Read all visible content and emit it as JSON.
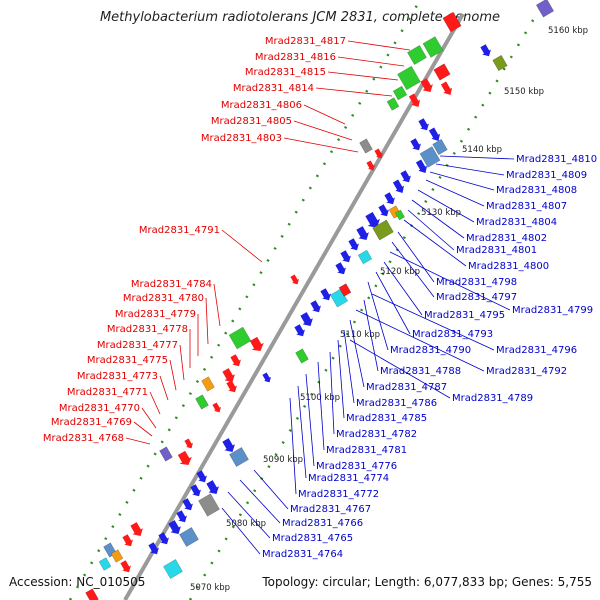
{
  "title": "Methylobacterium radiotolerans JCM 2831, complete genome",
  "footer": {
    "accession": "Accession: NC_010505",
    "info": "Topology: circular; Length: 6,077,833 bp; Genes: 5,755"
  },
  "colors": {
    "reverse_strand": "#e00000",
    "forward_strand": "#0000cc",
    "backbone": "#9a9a9a",
    "tick": "#2e8b22",
    "cds_red": "#ff1a1a",
    "cds_blue": "#1f1fe6",
    "cds_green": "#2ecc2e",
    "cds_steel": "#5b8fc7",
    "cds_olive": "#7a9a1e",
    "cds_cyan": "#27d8e8",
    "cds_gray": "#8c8c8c",
    "cds_orange": "#f39c12",
    "cds_purple": "#7060c8"
  },
  "scale": {
    "unit": "kbp",
    "ticks": [
      "5070 kbp",
      "5080 kbp",
      "5090 kbp",
      "5100 kbp",
      "5110 kbp",
      "5120 kbp",
      "5130 kbp",
      "5140 kbp",
      "5150 kbp",
      "5160 kbp"
    ]
  },
  "left_labels": [
    "Mrad2831_4817",
    "Mrad2831_4816",
    "Mrad2831_4815",
    "Mrad2831_4814",
    "Mrad2831_4806",
    "Mrad2831_4805",
    "Mrad2831_4803",
    "Mrad2831_4791",
    "Mrad2831_4784",
    "Mrad2831_4780",
    "Mrad2831_4779",
    "Mrad2831_4778",
    "Mrad2831_4777",
    "Mrad2831_4775",
    "Mrad2831_4773",
    "Mrad2831_4771",
    "Mrad2831_4770",
    "Mrad2831_4769",
    "Mrad2831_4768"
  ],
  "right_labels": [
    "Mrad2831_4810",
    "Mrad2831_4809",
    "Mrad2831_4808",
    "Mrad2831_4807",
    "Mrad2831_4804",
    "Mrad2831_4802",
    "Mrad2831_4801",
    "Mrad2831_4800",
    "Mrad2831_4798",
    "Mrad2831_4797",
    "Mrad2831_4799",
    "Mrad2831_4795",
    "Mrad2831_4793",
    "Mrad2831_4790",
    "Mrad2831_4796",
    "Mrad2831_4788",
    "Mrad2831_4792",
    "Mrad2831_4787",
    "Mrad2831_4786",
    "Mrad2831_4789",
    "Mrad2831_4785",
    "Mrad2831_4782",
    "Mrad2831_4781",
    "Mrad2831_4776",
    "Mrad2831_4774",
    "Mrad2831_4772",
    "Mrad2831_4767",
    "Mrad2831_4766",
    "Mrad2831_4765",
    "Mrad2831_4764"
  ]
}
